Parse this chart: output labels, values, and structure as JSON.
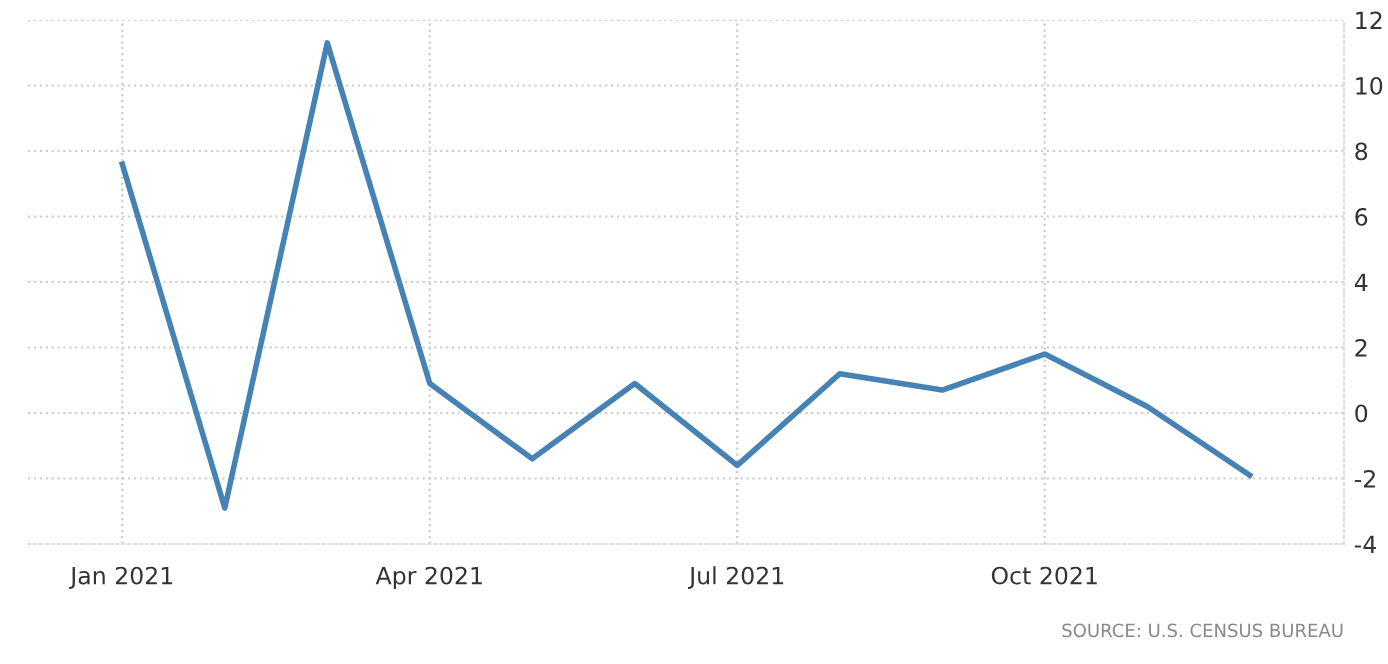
{
  "chart_data": {
    "type": "line",
    "categories": [
      "Jan 2021",
      null,
      null,
      "Apr 2021",
      null,
      null,
      "Jul 2021",
      null,
      null,
      "Oct 2021",
      null,
      null
    ],
    "series": [
      {
        "color": "#4682b4",
        "values": [
          7.6,
          -2.9,
          11.3,
          0.9,
          -1.4,
          0.9,
          -1.6,
          1.2,
          0.7,
          1.8,
          0.2,
          -1.9
        ]
      }
    ],
    "ylim": [
      -4,
      12
    ],
    "yticks": [
      -4,
      -2,
      0,
      2,
      4,
      6,
      8,
      10,
      12
    ],
    "grid": true,
    "marker": "none",
    "line_style": "solid",
    "annotations": [
      "SOURCE: U.S. CENSUS BUREAU"
    ]
  }
}
